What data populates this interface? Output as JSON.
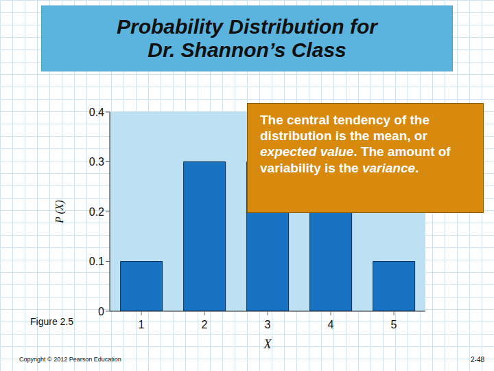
{
  "chart_data": {
    "type": "bar",
    "title": "Probability Distribution for Dr. Shannon’s Class",
    "categories": [
      "1",
      "2",
      "3",
      "4",
      "5"
    ],
    "values": [
      0.1,
      0.3,
      0.3,
      0.2,
      0.1
    ],
    "color": "#1a73c2",
    "x_label": "X",
    "y_label": "P (X)",
    "ylim": [
      0,
      0.4
    ],
    "yticks": [
      0,
      0.1,
      0.2,
      0.3,
      0.4
    ],
    "grid": false,
    "callout": [
      "The central tendency of the distribution is the mean, or ",
      "expected value",
      ". The amount of variability is the ",
      "variance",
      "."
    ],
    "figure_label": "Figure 2.5",
    "copyright": "Copyright © 2012 Pearson Education",
    "page": "2-48"
  }
}
